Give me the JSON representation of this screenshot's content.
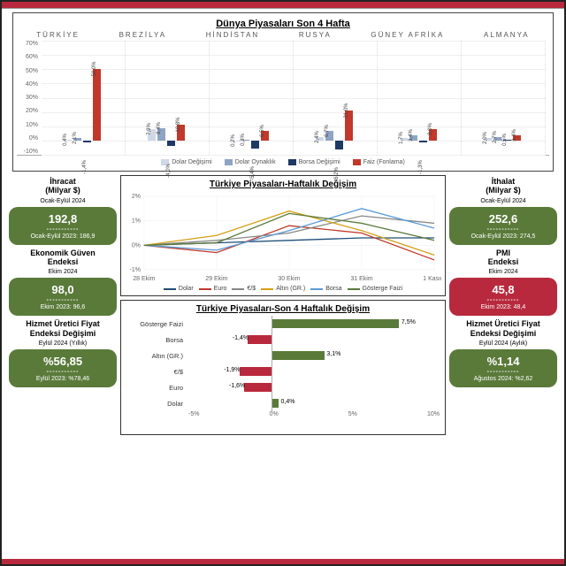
{
  "colors": {
    "green": "#5a7a3a",
    "red": "#b8293d",
    "bar1": "#cfd8e6",
    "bar2": "#8fa4c4",
    "bar3": "#1f3864",
    "bar4": "#c0392b",
    "line_dolar": "#1f4e79",
    "line_euro": "#c0392b",
    "line_eurusd": "#888888",
    "line_altin": "#d4a017",
    "line_borsa": "#5b9bd5",
    "line_faiz": "#5a7a3a"
  },
  "world": {
    "title": "Dünya Piyasaları Son 4 Hafta",
    "countries": [
      "TÜRKİYE",
      "BREZİLYA",
      "HİNDİSTAN",
      "RUSYA",
      "GÜNEY AFRİKA",
      "ALMANYA"
    ],
    "ymin": -10,
    "ymax": 70,
    "ystep": 10,
    "legend": [
      "Dolar Değişimi",
      "Dolar Oynaklık",
      "Borsa Değişimi",
      "Faiz (Fonlama)"
    ],
    "data": [
      [
        0.4,
        2.1,
        -1.4,
        50.0
      ],
      [
        7.9,
        8.4,
        -4.0,
        10.8
      ],
      [
        0.2,
        0.3,
        -5.4,
        6.5
      ],
      [
        2.4,
        6.7,
        -6.2,
        21.0
      ],
      [
        1.7,
        3.4,
        -1.3,
        8.0
      ],
      [
        2.0,
        2.7,
        0.5,
        3.4
      ]
    ]
  },
  "left": [
    {
      "t1": "İhracat",
      "t2": "(Milyar $)",
      "t3": "Ocak-Eylül 2024",
      "val": "192,8",
      "prev": "Ocak-Eylül 2023: 186,9",
      "cls": "green"
    },
    {
      "t1": "Ekonomik Güven",
      "t2": "Endeksi",
      "t3": "Ekim 2024",
      "val": "98,0",
      "prev": "Ekim 2023: 96,6",
      "cls": "green"
    },
    {
      "t1": "Hizmet Üretici Fiyat",
      "t2": "Endeksi Değişimi",
      "t3": "Eylül 2024 (Yıllık)",
      "val": "%56,85",
      "prev": "Eylül 2023: %78,46",
      "cls": "green"
    }
  ],
  "right": [
    {
      "t1": "İthalat",
      "t2": "(Milyar $)",
      "t3": "Ocak-Eylül 2024",
      "val": "252,6",
      "prev": "Ocak-Eylül 2023: 274,5",
      "cls": "green"
    },
    {
      "t1": "PMI",
      "t2": "Endeksi",
      "t3": "Ekim 2024",
      "val": "45,8",
      "prev": "Ekim 2023: 48,4",
      "cls": "red"
    },
    {
      "t1": "Hizmet Üretici Fiyat",
      "t2": "Endeksi Değişimi",
      "t3": "Eylül 2024 (Aylık)",
      "val": "%1,14",
      "prev": "Ağustos 2024: %2,62",
      "cls": "green"
    }
  ],
  "weekly": {
    "title": "Türkiye Piyasaları-Haftalık Değişim",
    "x": [
      "28 Ekim",
      "29 Ekim",
      "30 Ekim",
      "31 Ekim",
      "1 Kasım"
    ],
    "ymin": -1,
    "ymax": 2,
    "series": [
      {
        "name": "Dolar",
        "color": "#1f4e79",
        "pts": [
          0,
          0.1,
          0.2,
          0.3,
          0.3
        ]
      },
      {
        "name": "Euro",
        "color": "#c0392b",
        "pts": [
          0,
          -0.3,
          0.8,
          0.5,
          -0.6
        ]
      },
      {
        "name": "€/$",
        "color": "#888888",
        "pts": [
          0,
          0.2,
          0.5,
          1.2,
          0.9
        ]
      },
      {
        "name": "Altın (GR.)",
        "color": "#d4a017",
        "pts": [
          0,
          0.4,
          1.4,
          0.6,
          -0.4
        ]
      },
      {
        "name": "Borsa",
        "color": "#5b9bd5",
        "pts": [
          0,
          -0.2,
          0.6,
          1.5,
          0.7
        ]
      },
      {
        "name": "Gösterge Faizi",
        "color": "#5a7a3a",
        "pts": [
          0,
          0.1,
          1.3,
          0.9,
          0.2
        ]
      }
    ]
  },
  "fourweek": {
    "title": "Türkiye Piyasaları-Son 4 Haftalık Değişim",
    "xmin": -5,
    "xmax": 10,
    "xticks": [
      "-5%",
      "0%",
      "5%",
      "10%"
    ],
    "rows": [
      {
        "label": "Gösterge Faizi",
        "val": 7.5,
        "color": "#5a7a3a"
      },
      {
        "label": "Borsa",
        "val": -1.4,
        "color": "#b8293d"
      },
      {
        "label": "Altın (GR.)",
        "val": 3.1,
        "color": "#5a7a3a"
      },
      {
        "label": "€/$",
        "val": -1.9,
        "color": "#b8293d"
      },
      {
        "label": "Euro",
        "val": -1.6,
        "color": "#b8293d"
      },
      {
        "label": "Dolar",
        "val": 0.4,
        "color": "#5a7a3a"
      }
    ]
  }
}
